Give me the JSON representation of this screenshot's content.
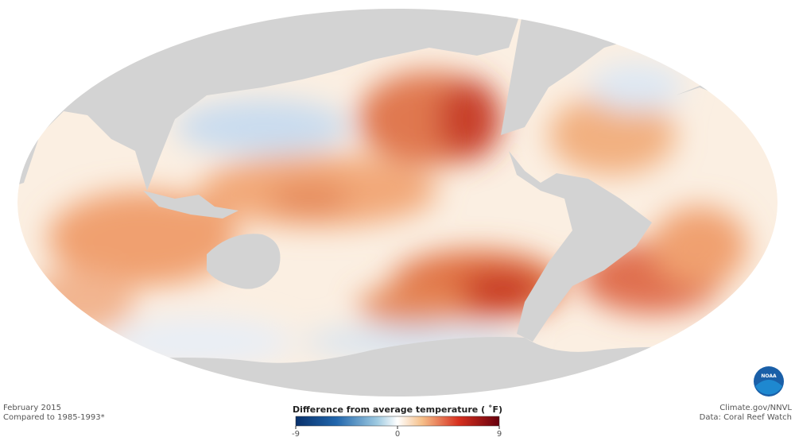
{
  "header": {
    "date": "February 2015",
    "baseline": "Compared to 1985-1993*"
  },
  "colorbar": {
    "title": "Difference from average temperature ( ˚F)",
    "range": [
      -9,
      9
    ],
    "ticks": [
      -9,
      0,
      9
    ]
  },
  "credits": {
    "source": "Climate.gov/NNVL",
    "data": "Data: Coral Reef Watch",
    "logo": "NOAA"
  }
}
